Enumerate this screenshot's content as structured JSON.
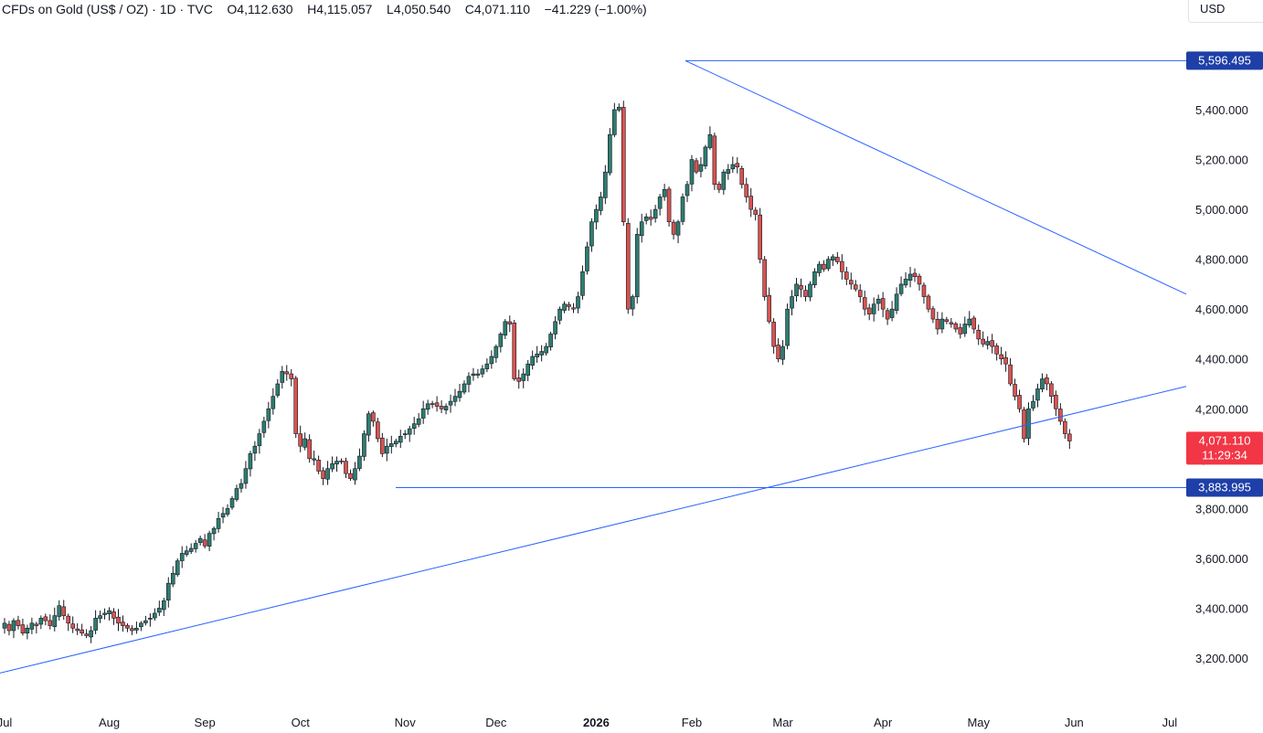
{
  "header": {
    "symbol": "CFDs on Gold (US$ / OZ)",
    "interval": "1D",
    "source": "TVC",
    "sep": "·",
    "o_label": "O",
    "o_value": "4,112.630",
    "h_label": "H",
    "h_value": "4,115.057",
    "l_label": "L",
    "l_value": "4,050.540",
    "c_label": "C",
    "c_value": "4,071.110",
    "change": "−41.229 (−1.00%)"
  },
  "currency": "USD",
  "colors": {
    "up": "#26a69a",
    "down": "#ef5350",
    "up_body": "#2e7d6f",
    "down_body": "#d9534f",
    "wick": "#131722",
    "line": "#2962ff",
    "pill_blue": "#1e3fa8",
    "pill_red": "#f23645"
  },
  "chart_data": {
    "type": "candlestick",
    "title": "CFDs on Gold (US$ / OZ) · 1D · TVC",
    "ylabel": "USD",
    "ylim": [
      3080,
      5720
    ],
    "y_ticks": [
      "3,200.000",
      "3,400.000",
      "3,600.000",
      "3,800.000",
      "4,000.000",
      "4,200.000",
      "4,400.000",
      "4,600.000",
      "4,800.000",
      "5,000.000",
      "5,200.000",
      "5,400.000"
    ],
    "y_tick_values": [
      3200,
      3400,
      3600,
      3800,
      4000,
      4200,
      4400,
      4600,
      4800,
      5000,
      5200,
      5400
    ],
    "x_ticks": [
      {
        "label": "Jul",
        "bar": 0,
        "bold": false
      },
      {
        "label": "Aug",
        "bar": 23,
        "bold": false
      },
      {
        "label": "Sep",
        "bar": 44,
        "bold": false
      },
      {
        "label": "Oct",
        "bar": 65,
        "bold": false
      },
      {
        "label": "Nov",
        "bar": 88,
        "bold": false
      },
      {
        "label": "Dec",
        "bar": 108,
        "bold": false
      },
      {
        "label": "2026",
        "bar": 130,
        "bold": true
      },
      {
        "label": "Feb",
        "bar": 151,
        "bold": false
      },
      {
        "label": "Mar",
        "bar": 171,
        "bold": false
      },
      {
        "label": "Apr",
        "bar": 193,
        "bold": false
      },
      {
        "label": "May",
        "bar": 214,
        "bold": false
      },
      {
        "label": "Jun",
        "bar": 235,
        "bold": false
      },
      {
        "label": "Jul",
        "bar": 256,
        "bold": false
      }
    ],
    "closes": [
      3340,
      3310,
      3350,
      3330,
      3300,
      3320,
      3340,
      3330,
      3360,
      3350,
      3330,
      3370,
      3410,
      3370,
      3340,
      3320,
      3310,
      3300,
      3290,
      3310,
      3360,
      3370,
      3380,
      3390,
      3360,
      3340,
      3330,
      3320,
      3310,
      3320,
      3340,
      3350,
      3360,
      3380,
      3400,
      3430,
      3500,
      3540,
      3590,
      3620,
      3630,
      3640,
      3660,
      3680,
      3650,
      3700,
      3720,
      3760,
      3780,
      3800,
      3840,
      3880,
      3900,
      3960,
      4020,
      4050,
      4100,
      4150,
      4200,
      4250,
      4300,
      4350,
      4340,
      4320,
      4100,
      4050,
      4080,
      4000,
      4000,
      3950,
      3920,
      3960,
      3980,
      3990,
      3990,
      3940,
      3920,
      3960,
      4010,
      4100,
      4180,
      4150,
      4080,
      4020,
      4050,
      4060,
      4070,
      4090,
      4100,
      4120,
      4140,
      4160,
      4200,
      4220,
      4220,
      4210,
      4200,
      4210,
      4230,
      4250,
      4270,
      4300,
      4330,
      4340,
      4340,
      4360,
      4380,
      4410,
      4450,
      4500,
      4550,
      4540,
      4320,
      4310,
      4340,
      4380,
      4410,
      4420,
      4430,
      4450,
      4500,
      4550,
      4600,
      4620,
      4610,
      4600,
      4650,
      4750,
      4850,
      4950,
      5000,
      5050,
      5150,
      5300,
      5400,
      5410,
      4950,
      4600,
      4650,
      4900,
      4950,
      4970,
      4960,
      5000,
      5050,
      5080,
      4950,
      4900,
      4950,
      5050,
      5100,
      5200,
      5150,
      5180,
      5250,
      5300,
      5100,
      5080,
      5150,
      5160,
      5180,
      5170,
      5100,
      5050,
      5000,
      4980,
      4800,
      4650,
      4550,
      4450,
      4400,
      4450,
      4600,
      4650,
      4700,
      4680,
      4650,
      4700,
      4750,
      4780,
      4760,
      4800,
      4810,
      4790,
      4750,
      4720,
      4700,
      4680,
      4650,
      4600,
      4580,
      4620,
      4640,
      4600,
      4560,
      4600,
      4660,
      4700,
      4720,
      4740,
      4730,
      4700,
      4650,
      4600,
      4560,
      4520,
      4560,
      4550,
      4540,
      4520,
      4500,
      4540,
      4560,
      4520,
      4480,
      4460,
      4470,
      4450,
      4420,
      4400,
      4380,
      4300,
      4250,
      4200,
      4080,
      4200,
      4230,
      4280,
      4320,
      4300,
      4250,
      4200,
      4150,
      4100,
      4071
    ]
  },
  "levels": {
    "top": {
      "label": "5,596.495",
      "value": 5596.495
    },
    "bottom": {
      "label": "3,883.995",
      "value": 3883.995
    }
  },
  "last_price": {
    "label": "4,071.110",
    "value": 4071.11,
    "countdown": "11:29:34"
  }
}
